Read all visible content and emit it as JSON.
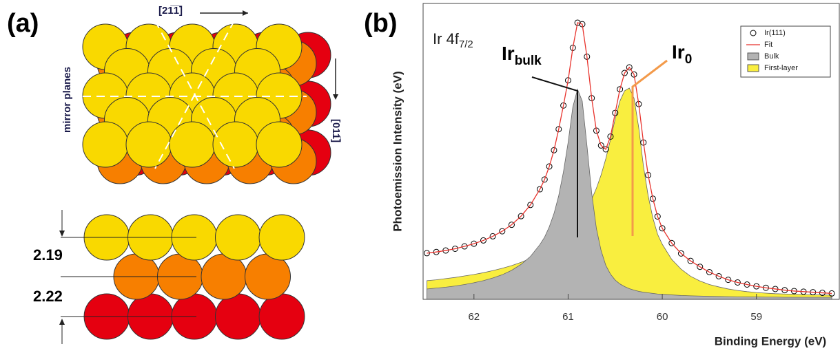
{
  "panel_a": {
    "label": "(a)",
    "direction_top": "[21̅1̅]",
    "direction_right": "[011̅]",
    "mirror": "mirror planes",
    "spacings": [
      2.19,
      2.22
    ]
  },
  "chart_data": {
    "type": "line",
    "panel_label": "(b)",
    "label": {
      "text": "Ir 4f",
      "sub": "7/2"
    },
    "annotations": [
      {
        "text": "Ir",
        "sub": "bulk"
      },
      {
        "text": "Ir",
        "sub": "0"
      }
    ],
    "x_label": "Binding Energy (eV)",
    "y_label": "Photoemission Intensity (eV)",
    "xlim": [
      62.54,
      58.12
    ],
    "xticks": [
      62,
      61,
      60,
      59
    ],
    "ylim": [
      0,
      100
    ],
    "legend": "upper right",
    "x": [
      62.5,
      62.4,
      62.3,
      62.2,
      62.1,
      62.0,
      61.9,
      61.8,
      61.7,
      61.6,
      61.5,
      61.4,
      61.3,
      61.25,
      61.2,
      61.15,
      61.1,
      61.05,
      61.0,
      60.95,
      60.9,
      60.85,
      60.8,
      60.75,
      60.7,
      60.65,
      60.6,
      60.55,
      60.5,
      60.45,
      60.4,
      60.35,
      60.3,
      60.25,
      60.2,
      60.15,
      60.1,
      60.05,
      60.0,
      59.9,
      59.8,
      59.7,
      59.6,
      59.5,
      59.4,
      59.3,
      59.2,
      59.1,
      59.0,
      58.9,
      58.8,
      58.7,
      58.6,
      58.5,
      58.4,
      58.3,
      58.2
    ],
    "series": [
      {
        "name": "Ir(111)",
        "color": "#000000",
        "style": "markers",
        "values": [
          15.6,
          16.0,
          16.5,
          17.1,
          17.9,
          18.8,
          19.9,
          21.3,
          23.0,
          25.2,
          28.1,
          31.9,
          37.2,
          40.5,
          44.9,
          50.4,
          57.5,
          65.5,
          74,
          85,
          93.5,
          93,
          82,
          68,
          57,
          52,
          50.7,
          55,
          63,
          71,
          76.5,
          78.4,
          76,
          66,
          53,
          42,
          34,
          28,
          24,
          19,
          15.5,
          13,
          11,
          9.2,
          7.8,
          6.6,
          5.7,
          5.0,
          4.4,
          3.9,
          3.5,
          3.1,
          2.8,
          2.6,
          2.4,
          2.2,
          2.0
        ]
      },
      {
        "name": "Fit",
        "color": "#e8322c",
        "style": "line",
        "values": [
          15.6,
          16.0,
          16.5,
          17.1,
          17.9,
          18.8,
          19.9,
          21.3,
          23.0,
          25.2,
          28.1,
          31.9,
          37.2,
          40.5,
          44.9,
          50.4,
          57.5,
          65.5,
          74,
          85,
          93.5,
          93,
          82,
          68,
          57,
          52,
          50.7,
          55,
          63,
          71,
          76.5,
          78.4,
          76,
          66,
          53,
          42,
          34,
          28,
          24,
          19,
          15.5,
          13,
          11,
          9.2,
          7.8,
          6.6,
          5.7,
          5.0,
          4.4,
          3.9,
          3.5,
          3.1,
          2.8,
          2.6,
          2.4,
          2.2,
          2.0
        ]
      },
      {
        "name": "Bulk",
        "color": "#b3b3b3",
        "style": "area",
        "values": [
          3.5,
          3.8,
          4.1,
          4.5,
          5.0,
          5.6,
          6.3,
          7.2,
          8.3,
          9.8,
          11.8,
          14.5,
          18.5,
          21,
          24.5,
          29,
          35,
          43,
          53,
          65,
          71,
          67,
          52,
          36,
          24,
          16.5,
          11.5,
          8.5,
          6.5,
          5.2,
          4.3,
          3.6,
          3.1,
          2.7,
          2.4,
          2.2,
          2.0,
          1.8,
          1.7,
          1.5,
          1.3,
          1.2,
          1.1,
          1.0,
          0.95,
          0.9,
          0.85,
          0.8,
          0.8,
          0.75,
          0.75,
          0.7,
          0.7,
          0.7,
          0.7,
          0.7,
          0.7
        ]
      },
      {
        "name": "First-layer",
        "color": "#f9ee3f",
        "style": "area",
        "values": [
          6.3,
          6.6,
          7.0,
          7.4,
          7.9,
          8.4,
          9.0,
          9.7,
          10.5,
          11.4,
          12.5,
          13.8,
          15.3,
          16.2,
          17.2,
          18.3,
          19.5,
          20.8,
          22.3,
          24.0,
          26.0,
          28.2,
          30.8,
          33.8,
          37.5,
          42,
          47.5,
          54,
          61,
          67,
          70.5,
          71.4,
          68,
          58,
          45,
          35,
          27.5,
          22,
          18.6,
          13.5,
          10.2,
          7.8,
          6.2,
          5.0,
          4.2,
          3.5,
          3.0,
          2.6,
          2.3,
          2.1,
          1.9,
          1.8,
          1.7,
          1.6,
          1.5,
          1.5,
          1.4
        ]
      }
    ]
  }
}
